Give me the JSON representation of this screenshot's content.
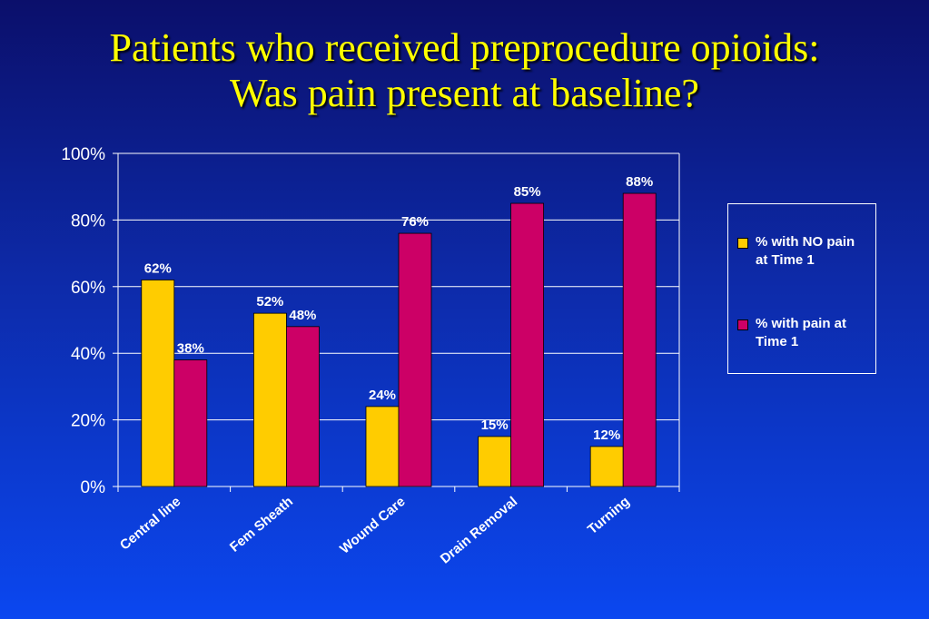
{
  "title_lines": [
    "Patients who received preprocedure opioids:",
    "Was pain present at baseline?"
  ],
  "chart_data": {
    "type": "bar",
    "categories": [
      "Central line",
      "Fem Sheath",
      "Wound Care",
      "Drain Removal",
      "Turning"
    ],
    "series": [
      {
        "name": "% with NO pain at Time 1",
        "values": [
          62,
          52,
          24,
          15,
          12
        ],
        "labels": [
          "62%",
          "52%",
          "24%",
          "15%",
          "12%"
        ],
        "color": "#ffcc00"
      },
      {
        "name": "% with pain at Time 1",
        "values": [
          38,
          48,
          76,
          85,
          88
        ],
        "labels": [
          "38%",
          "48%",
          "76%",
          "85%",
          "88%"
        ],
        "color": "#cc0066"
      }
    ],
    "ylim": [
      0,
      100
    ],
    "yticks": [
      0,
      20,
      40,
      60,
      80,
      100
    ],
    "ytick_labels": [
      "0%",
      "20%",
      "40%",
      "60%",
      "80%",
      "100%"
    ],
    "grid": true,
    "legend_position": "right"
  },
  "legend": {
    "item1_line1": "% with NO pain",
    "item1_line2": "at Time 1",
    "item2_line1": "% with pain at",
    "item2_line2": "Time 1"
  },
  "colors": {
    "no_pain": "#ffcc00",
    "pain": "#cc0066",
    "title": "#ffff00",
    "text": "#ffffff"
  }
}
